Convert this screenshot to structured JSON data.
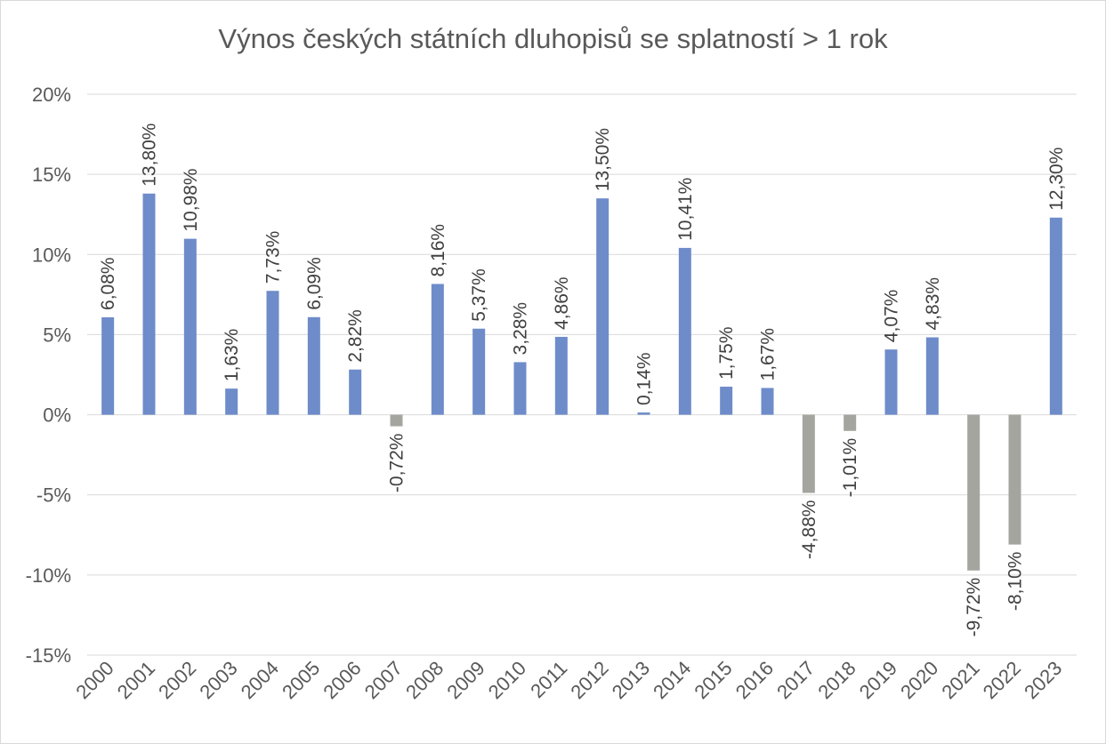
{
  "chart_data": {
    "type": "bar",
    "title": "Výnos českých státních dluhopisů se splatností > 1 rok",
    "xlabel": "",
    "ylabel": "",
    "ylim": [
      -15,
      20
    ],
    "yticks": [
      "20%",
      "15%",
      "10%",
      "5%",
      "0%",
      "-5%",
      "-10%",
      "-15%"
    ],
    "ytick_values": [
      20,
      15,
      10,
      5,
      0,
      -5,
      -10,
      -15
    ],
    "grid": true,
    "legend": "none",
    "categories": [
      "2000",
      "2001",
      "2002",
      "2003",
      "2004",
      "2005",
      "2006",
      "2007",
      "2008",
      "2009",
      "2010",
      "2011",
      "2012",
      "2013",
      "2014",
      "2015",
      "2016",
      "2017",
      "2018",
      "2019",
      "2020",
      "2021",
      "2022",
      "2023"
    ],
    "values": [
      6.08,
      13.8,
      10.98,
      1.63,
      7.73,
      6.09,
      2.82,
      -0.72,
      8.16,
      5.37,
      3.28,
      4.86,
      13.5,
      0.14,
      10.41,
      1.75,
      1.67,
      -4.88,
      -1.01,
      4.07,
      4.83,
      -9.72,
      -8.1,
      12.3
    ],
    "data_labels": [
      "6,08%",
      "13,80%",
      "10,98%",
      "1,63%",
      "7,73%",
      "6,09%",
      "2,82%",
      "-0,72%",
      "8,16%",
      "5,37%",
      "3,28%",
      "4,86%",
      "13,50%",
      "0,14%",
      "10,41%",
      "1,75%",
      "1,67%",
      "-4,88%",
      "-1,01%",
      "4,07%",
      "4,83%",
      "-9,72%",
      "-8,10%",
      "12,30%"
    ],
    "colors": {
      "positive": "#6e8cc9",
      "negative": "#a5a5a0",
      "grid": "#d9d9d9",
      "text": "#595959"
    }
  }
}
